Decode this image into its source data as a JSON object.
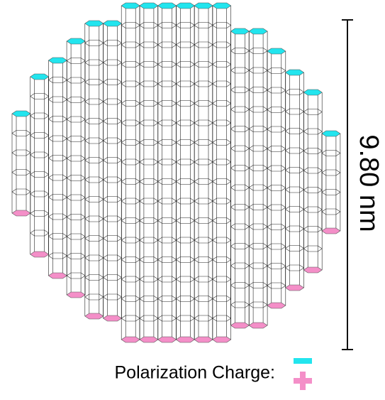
{
  "scale_label": "9.80 nm",
  "legend": {
    "label": "Polarization Charge:"
  }
}
